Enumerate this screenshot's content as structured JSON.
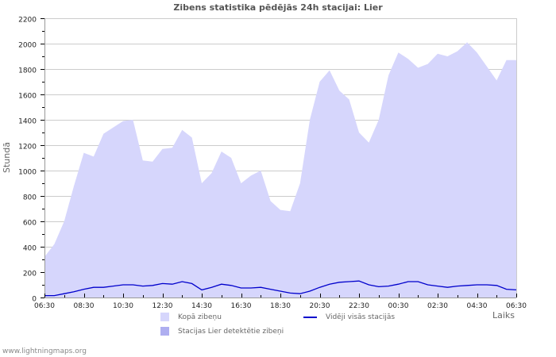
{
  "title": "Zibens statistika pēdējās 24h stacijai: Lier",
  "footer": "www.lightningmaps.org",
  "legend": {
    "total": "Kopā zibeņu",
    "station": "Stacijas Lier detektētie zibeņi",
    "average": "Vidēji visās stacijās"
  },
  "colors": {
    "total_fill": "#d6d6fc",
    "station_fill": "#aeaef0",
    "average_line": "#0000cc",
    "grid": "#cccccc",
    "axis": "#999999"
  },
  "chart_data": {
    "type": "area",
    "title": "Zibens statistika pēdējās 24h stacijai: Lier",
    "xlabel": "Laiks",
    "ylabel": "Stundā",
    "ylim": [
      0,
      2200
    ],
    "yticks": [
      0,
      200,
      400,
      600,
      800,
      1000,
      1200,
      1400,
      1600,
      1800,
      2000,
      2200
    ],
    "xtick_labels": [
      "06:30",
      "08:30",
      "10:30",
      "12:30",
      "14:30",
      "16:30",
      "18:30",
      "20:30",
      "22:30",
      "00:30",
      "02:30",
      "04:30",
      "06:30"
    ],
    "grid": true,
    "legend_position": "bottom",
    "x_hours": [
      0,
      0.5,
      1,
      1.5,
      2,
      2.5,
      3,
      3.5,
      4,
      4.5,
      5,
      5.5,
      6,
      6.5,
      7,
      7.5,
      8,
      8.5,
      9,
      9.5,
      10,
      10.5,
      11,
      11.5,
      12,
      12.5,
      13,
      13.5,
      14,
      14.5,
      15,
      15.5,
      16,
      16.5,
      17,
      17.5,
      18,
      18.5,
      19,
      19.5,
      20,
      20.5,
      21,
      21.5,
      22,
      22.5,
      23,
      23.5,
      24
    ],
    "series": [
      {
        "name": "Kopā zibeņu",
        "style": "area",
        "values": [
          320,
          420,
          600,
          880,
          1140,
          1110,
          1290,
          1340,
          1390,
          1400,
          1080,
          1070,
          1170,
          1180,
          1320,
          1260,
          900,
          980,
          1150,
          1100,
          900,
          960,
          1000,
          760,
          690,
          680,
          900,
          1400,
          1700,
          1790,
          1630,
          1560,
          1300,
          1220,
          1400,
          1750,
          1930,
          1880,
          1810,
          1840,
          1920,
          1900,
          1940,
          2010,
          1930,
          1820,
          1710,
          1870,
          1870
        ]
      },
      {
        "name": "Stacijas Lier detektētie zibeņi",
        "style": "area",
        "values": [
          0,
          0,
          0,
          0,
          0,
          0,
          0,
          0,
          0,
          0,
          0,
          0,
          0,
          0,
          0,
          0,
          0,
          0,
          0,
          0,
          0,
          0,
          0,
          0,
          0,
          0,
          0,
          0,
          0,
          0,
          0,
          0,
          0,
          0,
          0,
          0,
          0,
          0,
          0,
          0,
          0,
          0,
          0,
          0,
          0,
          0,
          0,
          0,
          0
        ]
      },
      {
        "name": "Vidēji visās stacijās",
        "style": "line",
        "values": [
          15,
          15,
          30,
          45,
          65,
          80,
          80,
          90,
          100,
          100,
          90,
          95,
          110,
          105,
          125,
          110,
          60,
          80,
          105,
          95,
          75,
          75,
          80,
          65,
          50,
          35,
          30,
          50,
          80,
          105,
          120,
          125,
          130,
          100,
          85,
          90,
          105,
          125,
          125,
          100,
          90,
          80,
          90,
          95,
          100,
          100,
          95,
          65,
          60
        ]
      }
    ]
  }
}
